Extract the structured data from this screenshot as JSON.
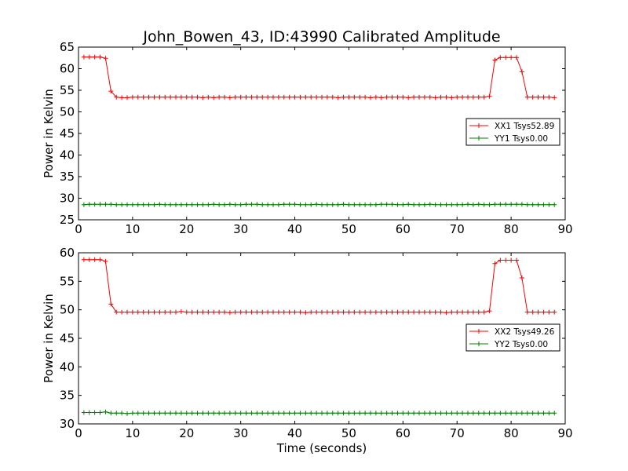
{
  "figure": {
    "title": "John_Bowen_43, ID:43990 Calibrated Amplitude",
    "xlabel": "Time (seconds)"
  },
  "chart_data": [
    {
      "type": "line",
      "xlabel": "",
      "ylabel": "Power in Kelvin",
      "xlim": [
        0,
        90
      ],
      "ylim": [
        25,
        65
      ],
      "xticks": [
        "0",
        "10",
        "20",
        "30",
        "40",
        "50",
        "60",
        "70",
        "80",
        "90"
      ],
      "yticks": [
        "25",
        "30",
        "35",
        "40",
        "45",
        "50",
        "55",
        "60",
        "65"
      ],
      "grid": false,
      "legend_position": "center-right",
      "series": [
        {
          "name": "XX1 Tsys52.89",
          "color": "#ff0000",
          "marker": "+",
          "x": [
            1,
            2,
            3,
            4,
            5,
            6,
            7,
            8,
            9,
            10,
            11,
            12,
            13,
            14,
            15,
            16,
            17,
            18,
            19,
            20,
            21,
            22,
            23,
            24,
            25,
            26,
            27,
            28,
            29,
            30,
            31,
            32,
            33,
            34,
            35,
            36,
            37,
            38,
            39,
            40,
            41,
            42,
            43,
            44,
            45,
            46,
            47,
            48,
            49,
            50,
            51,
            52,
            53,
            54,
            55,
            56,
            57,
            58,
            59,
            60,
            61,
            62,
            63,
            64,
            65,
            66,
            67,
            68,
            69,
            70,
            71,
            72,
            73,
            74,
            75,
            76,
            77,
            78,
            79,
            80,
            81,
            82,
            83,
            84,
            85,
            86,
            87,
            88
          ],
          "y": [
            62.7,
            62.7,
            62.7,
            62.7,
            62.4,
            54.8,
            53.4,
            53.3,
            53.3,
            53.4,
            53.4,
            53.4,
            53.4,
            53.4,
            53.4,
            53.4,
            53.4,
            53.4,
            53.4,
            53.4,
            53.4,
            53.4,
            53.3,
            53.4,
            53.3,
            53.4,
            53.4,
            53.3,
            53.4,
            53.4,
            53.4,
            53.4,
            53.4,
            53.4,
            53.4,
            53.4,
            53.4,
            53.4,
            53.4,
            53.4,
            53.4,
            53.4,
            53.4,
            53.4,
            53.4,
            53.4,
            53.4,
            53.3,
            53.4,
            53.4,
            53.4,
            53.4,
            53.4,
            53.3,
            53.4,
            53.3,
            53.4,
            53.4,
            53.4,
            53.4,
            53.3,
            53.4,
            53.4,
            53.4,
            53.4,
            53.3,
            53.4,
            53.4,
            53.3,
            53.4,
            53.4,
            53.4,
            53.4,
            53.4,
            53.4,
            53.6,
            62.0,
            62.6,
            62.6,
            62.6,
            62.6,
            59.3,
            53.4,
            53.4,
            53.4,
            53.4,
            53.4,
            53.3
          ]
        },
        {
          "name": "YY1 Tsys0.00",
          "color": "#008000",
          "marker": "+",
          "x": [
            1,
            2,
            3,
            4,
            5,
            6,
            7,
            8,
            9,
            10,
            11,
            12,
            13,
            14,
            15,
            16,
            17,
            18,
            19,
            20,
            21,
            22,
            23,
            24,
            25,
            26,
            27,
            28,
            29,
            30,
            31,
            32,
            33,
            34,
            35,
            36,
            37,
            38,
            39,
            40,
            41,
            42,
            43,
            44,
            45,
            46,
            47,
            48,
            49,
            50,
            51,
            52,
            53,
            54,
            55,
            56,
            57,
            58,
            59,
            60,
            61,
            62,
            63,
            64,
            65,
            66,
            67,
            68,
            69,
            70,
            71,
            72,
            73,
            74,
            75,
            76,
            77,
            78,
            79,
            80,
            81,
            82,
            83,
            84,
            85,
            86,
            87,
            88
          ],
          "y": [
            28.5,
            28.6,
            28.6,
            28.6,
            28.6,
            28.6,
            28.5,
            28.5,
            28.5,
            28.5,
            28.5,
            28.5,
            28.5,
            28.5,
            28.6,
            28.5,
            28.5,
            28.5,
            28.5,
            28.5,
            28.5,
            28.5,
            28.5,
            28.5,
            28.6,
            28.5,
            28.5,
            28.6,
            28.5,
            28.5,
            28.6,
            28.6,
            28.6,
            28.5,
            28.5,
            28.5,
            28.5,
            28.6,
            28.6,
            28.6,
            28.5,
            28.5,
            28.5,
            28.6,
            28.5,
            28.5,
            28.5,
            28.5,
            28.6,
            28.5,
            28.5,
            28.5,
            28.5,
            28.5,
            28.5,
            28.6,
            28.6,
            28.6,
            28.5,
            28.5,
            28.6,
            28.5,
            28.5,
            28.5,
            28.6,
            28.5,
            28.5,
            28.5,
            28.5,
            28.5,
            28.5,
            28.6,
            28.5,
            28.6,
            28.5,
            28.5,
            28.6,
            28.6,
            28.6,
            28.6,
            28.6,
            28.6,
            28.5,
            28.5,
            28.5,
            28.5,
            28.5,
            28.5
          ]
        }
      ]
    },
    {
      "type": "line",
      "xlabel": "Time (seconds)",
      "ylabel": "Power in Kelvin",
      "xlim": [
        0,
        90
      ],
      "ylim": [
        30,
        60
      ],
      "xticks": [
        "0",
        "10",
        "20",
        "30",
        "40",
        "50",
        "60",
        "70",
        "80",
        "90"
      ],
      "yticks": [
        "30",
        "35",
        "40",
        "45",
        "50",
        "55",
        "60"
      ],
      "grid": false,
      "legend_position": "center-right",
      "series": [
        {
          "name": "XX2 Tsys49.26",
          "color": "#ff0000",
          "marker": "+",
          "x": [
            1,
            2,
            3,
            4,
            5,
            6,
            7,
            8,
            9,
            10,
            11,
            12,
            13,
            14,
            15,
            16,
            17,
            18,
            19,
            20,
            21,
            22,
            23,
            24,
            25,
            26,
            27,
            28,
            29,
            30,
            31,
            32,
            33,
            34,
            35,
            36,
            37,
            38,
            39,
            40,
            41,
            42,
            43,
            44,
            45,
            46,
            47,
            48,
            49,
            50,
            51,
            52,
            53,
            54,
            55,
            56,
            57,
            58,
            59,
            60,
            61,
            62,
            63,
            64,
            65,
            66,
            67,
            68,
            69,
            70,
            71,
            72,
            73,
            74,
            75,
            76,
            77,
            78,
            79,
            80,
            81,
            82,
            83,
            84,
            85,
            86,
            87,
            88
          ],
          "y": [
            58.8,
            58.8,
            58.8,
            58.8,
            58.5,
            51.0,
            49.6,
            49.6,
            49.6,
            49.6,
            49.6,
            49.6,
            49.6,
            49.6,
            49.6,
            49.6,
            49.6,
            49.6,
            49.7,
            49.6,
            49.6,
            49.6,
            49.6,
            49.6,
            49.6,
            49.6,
            49.6,
            49.5,
            49.6,
            49.6,
            49.6,
            49.6,
            49.6,
            49.6,
            49.6,
            49.6,
            49.6,
            49.6,
            49.6,
            49.6,
            49.6,
            49.5,
            49.6,
            49.6,
            49.6,
            49.6,
            49.6,
            49.6,
            49.6,
            49.6,
            49.6,
            49.6,
            49.6,
            49.6,
            49.6,
            49.6,
            49.6,
            49.6,
            49.6,
            49.6,
            49.6,
            49.6,
            49.6,
            49.6,
            49.6,
            49.6,
            49.6,
            49.5,
            49.6,
            49.6,
            49.6,
            49.6,
            49.6,
            49.6,
            49.6,
            49.8,
            58.1,
            58.7,
            58.7,
            58.7,
            58.7,
            55.6,
            49.6,
            49.6,
            49.6,
            49.6,
            49.6,
            49.6
          ]
        },
        {
          "name": "YY2 Tsys0.00",
          "color": "#008000",
          "marker": "+",
          "x": [
            1,
            2,
            3,
            4,
            5,
            6,
            7,
            8,
            9,
            10,
            11,
            12,
            13,
            14,
            15,
            16,
            17,
            18,
            19,
            20,
            21,
            22,
            23,
            24,
            25,
            26,
            27,
            28,
            29,
            30,
            31,
            32,
            33,
            34,
            35,
            36,
            37,
            38,
            39,
            40,
            41,
            42,
            43,
            44,
            45,
            46,
            47,
            48,
            49,
            50,
            51,
            52,
            53,
            54,
            55,
            56,
            57,
            58,
            59,
            60,
            61,
            62,
            63,
            64,
            65,
            66,
            67,
            68,
            69,
            70,
            71,
            72,
            73,
            74,
            75,
            76,
            77,
            78,
            79,
            80,
            81,
            82,
            83,
            84,
            85,
            86,
            87,
            88
          ],
          "y": [
            32.0,
            32.0,
            32.0,
            32.0,
            32.1,
            31.9,
            31.9,
            31.9,
            31.8,
            31.9,
            31.9,
            31.9,
            31.9,
            31.9,
            31.9,
            31.9,
            31.9,
            31.9,
            31.9,
            31.9,
            31.9,
            31.9,
            31.9,
            31.9,
            31.9,
            31.9,
            31.9,
            31.9,
            31.9,
            31.9,
            31.9,
            31.9,
            31.9,
            31.9,
            31.9,
            31.9,
            31.9,
            31.9,
            31.9,
            31.9,
            31.9,
            31.9,
            31.9,
            31.9,
            31.9,
            31.9,
            31.9,
            31.9,
            31.9,
            31.9,
            31.9,
            31.9,
            31.9,
            31.9,
            31.9,
            31.9,
            31.9,
            31.9,
            31.9,
            31.9,
            31.9,
            31.9,
            31.9,
            31.9,
            31.9,
            31.9,
            31.9,
            31.9,
            31.9,
            31.9,
            31.9,
            31.9,
            31.9,
            31.9,
            31.9,
            31.9,
            31.9,
            31.9,
            31.9,
            31.9,
            31.9,
            31.9,
            31.9,
            31.9,
            31.9,
            31.9,
            31.9,
            31.9
          ]
        }
      ]
    }
  ]
}
